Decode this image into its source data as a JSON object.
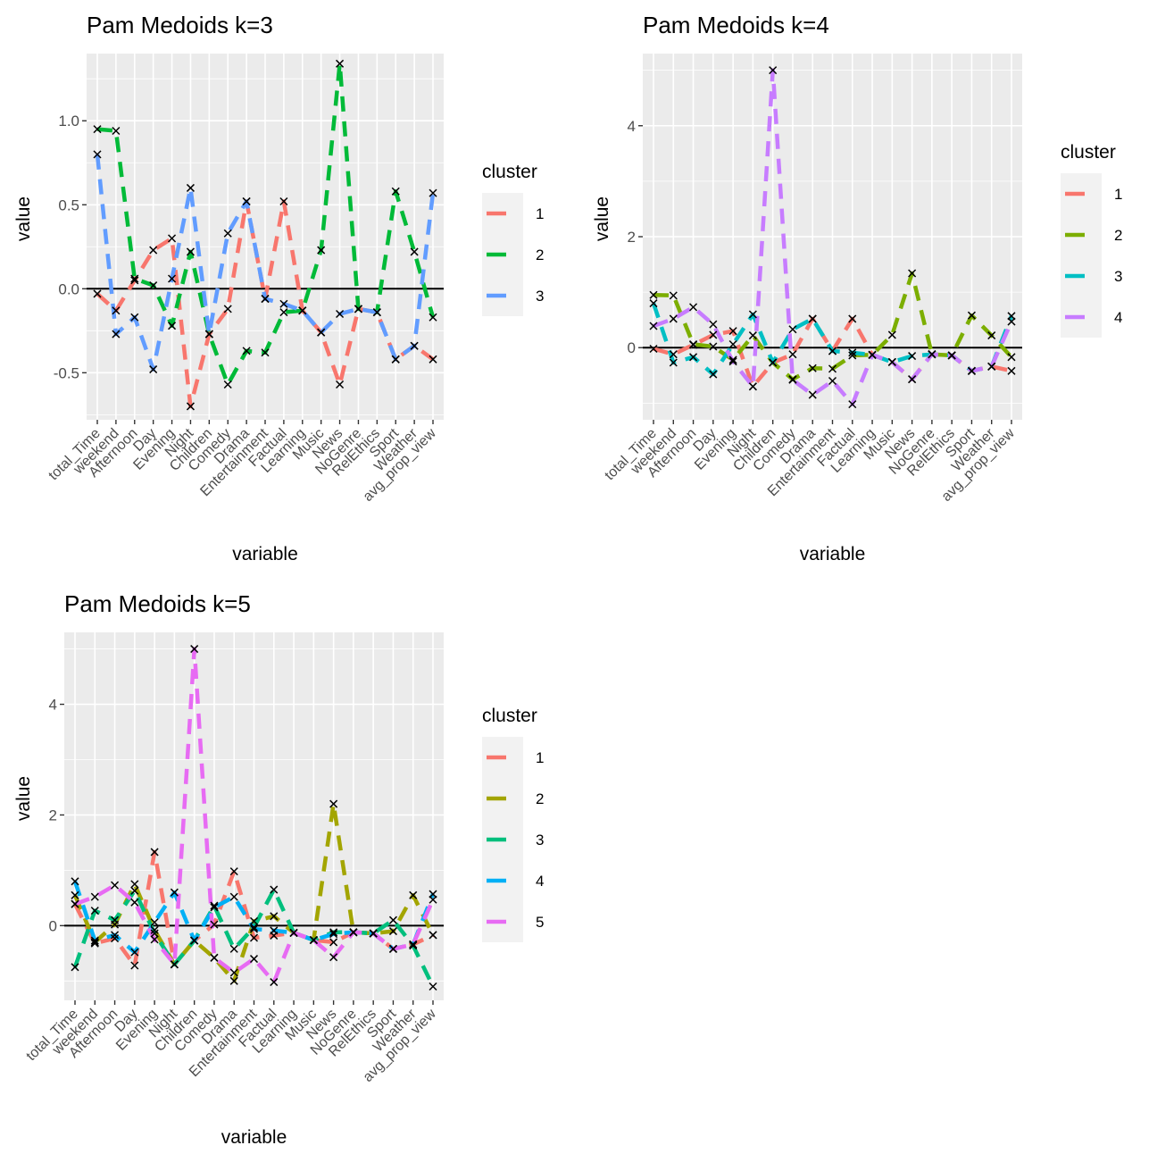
{
  "chart_data": [
    {
      "type": "line",
      "title": "Pam Medoids k=3",
      "xlabel": "variable",
      "ylabel": "value",
      "ylim": [
        -0.78,
        1.4
      ],
      "yticks": [
        -0.5,
        0.0,
        0.5,
        1.0
      ],
      "ytick_labels": [
        "-0.5",
        "0.0",
        "0.5",
        "1.0"
      ],
      "grid": true,
      "hline": 0,
      "legend_title": "cluster",
      "legend_position": "right",
      "categories": [
        "total_Time",
        "weekend",
        "Afternoon",
        "Day",
        "Evening",
        "Night",
        "Children",
        "Comedy",
        "Drama",
        "Entertainment",
        "Factual",
        "Learning",
        "Music",
        "News",
        "NoGenre",
        "RelEthics",
        "Sport",
        "Weather",
        "avg_prop_view"
      ],
      "series": [
        {
          "name": "1",
          "color": "#F8766D",
          "values": [
            -0.03,
            -0.13,
            0.05,
            0.23,
            0.3,
            -0.7,
            -0.27,
            -0.12,
            0.52,
            -0.06,
            0.52,
            -0.13,
            -0.26,
            -0.57,
            -0.12,
            -0.14,
            -0.42,
            -0.34,
            -0.42
          ]
        },
        {
          "name": "2",
          "color": "#00BA38",
          "values": [
            0.95,
            0.94,
            0.06,
            0.02,
            -0.22,
            0.22,
            -0.27,
            -0.57,
            -0.37,
            -0.38,
            -0.14,
            -0.13,
            0.23,
            1.34,
            -0.12,
            -0.14,
            0.58,
            0.22,
            -0.17
          ]
        },
        {
          "name": "3",
          "color": "#619CFF",
          "values": [
            0.8,
            -0.27,
            -0.17,
            -0.48,
            0.06,
            0.6,
            -0.27,
            0.33,
            0.52,
            -0.06,
            -0.09,
            -0.13,
            -0.26,
            -0.15,
            -0.12,
            -0.14,
            -0.42,
            -0.34,
            0.57
          ]
        }
      ]
    },
    {
      "type": "line",
      "title": "Pam Medoids k=4",
      "xlabel": "variable",
      "ylabel": "value",
      "ylim": [
        -1.3,
        5.3
      ],
      "yticks": [
        0,
        2,
        4
      ],
      "ytick_labels": [
        "0",
        "2",
        "4"
      ],
      "grid": true,
      "hline": 0,
      "legend_title": "cluster",
      "legend_position": "right",
      "categories": [
        "total_Time",
        "weekend",
        "Afternoon",
        "Day",
        "Evening",
        "Night",
        "Children",
        "Comedy",
        "Drama",
        "Entertainment",
        "Factual",
        "Learning",
        "Music",
        "News",
        "NoGenre",
        "RelEthics",
        "Sport",
        "Weather",
        "avg_prop_view"
      ],
      "series": [
        {
          "name": "1",
          "color": "#F8766D",
          "values": [
            -0.02,
            -0.12,
            0.05,
            0.23,
            0.3,
            -0.7,
            -0.27,
            -0.12,
            0.52,
            -0.06,
            0.52,
            -0.13,
            -0.26,
            -0.57,
            -0.12,
            -0.14,
            -0.42,
            -0.34,
            -0.42
          ]
        },
        {
          "name": "2",
          "color": "#7CAE00",
          "values": [
            0.95,
            0.94,
            0.06,
            0.02,
            -0.22,
            0.22,
            -0.27,
            -0.57,
            -0.37,
            -0.38,
            -0.14,
            -0.13,
            0.23,
            1.34,
            -0.12,
            -0.14,
            0.58,
            0.22,
            -0.17
          ]
        },
        {
          "name": "3",
          "color": "#00BFC4",
          "values": [
            0.8,
            -0.27,
            -0.17,
            -0.48,
            0.06,
            0.6,
            -0.27,
            0.33,
            0.52,
            -0.06,
            -0.09,
            -0.13,
            -0.26,
            -0.15,
            -0.12,
            -0.14,
            -0.42,
            -0.34,
            0.57
          ]
        },
        {
          "name": "4",
          "color": "#C77CFF",
          "values": [
            0.39,
            0.52,
            0.73,
            0.42,
            -0.25,
            -0.7,
            5.0,
            -0.58,
            -0.85,
            -0.6,
            -1.02,
            -0.13,
            -0.26,
            -0.57,
            -0.12,
            -0.14,
            -0.42,
            -0.34,
            0.47
          ]
        }
      ]
    },
    {
      "type": "line",
      "title": "Pam Medoids k=5",
      "xlabel": "variable",
      "ylabel": "value",
      "ylim": [
        -1.35,
        5.3
      ],
      "yticks": [
        0,
        2,
        4
      ],
      "ytick_labels": [
        "0",
        "2",
        "4"
      ],
      "grid": true,
      "hline": 0,
      "legend_title": "cluster",
      "legend_position": "right",
      "categories": [
        "total_Time",
        "weekend",
        "Afternoon",
        "Day",
        "Evening",
        "Night",
        "Children",
        "Comedy",
        "Drama",
        "Entertainment",
        "Factual",
        "Learning",
        "Music",
        "News",
        "NoGenre",
        "RelEthics",
        "Sport",
        "Weather",
        "avg_prop_view"
      ],
      "series": [
        {
          "name": "1",
          "color": "#F8766D",
          "values": [
            0.39,
            -0.32,
            -0.23,
            -0.72,
            1.33,
            -0.7,
            -0.27,
            0.02,
            0.98,
            -0.22,
            -0.18,
            -0.13,
            -0.26,
            -0.3,
            -0.12,
            -0.14,
            -0.42,
            -0.34,
            -0.17
          ]
        },
        {
          "name": "2",
          "color": "#A3A500",
          "values": [
            0.55,
            -0.3,
            0.02,
            0.75,
            -0.08,
            -0.7,
            -0.27,
            -0.58,
            -1.0,
            0.08,
            0.17,
            -0.13,
            -0.26,
            2.2,
            -0.12,
            -0.14,
            -0.1,
            0.55,
            -0.17
          ]
        },
        {
          "name": "3",
          "color": "#00BF7D",
          "values": [
            -0.75,
            0.27,
            0.1,
            0.63,
            -0.14,
            -0.7,
            -0.27,
            0.36,
            -0.42,
            -0.03,
            0.65,
            -0.13,
            -0.26,
            -0.12,
            -0.12,
            -0.14,
            0.1,
            -0.36,
            -1.1
          ]
        },
        {
          "name": "4",
          "color": "#00B0F6",
          "values": [
            0.8,
            -0.27,
            -0.17,
            -0.48,
            0.06,
            0.6,
            -0.27,
            0.33,
            0.52,
            -0.06,
            -0.09,
            -0.13,
            -0.26,
            -0.15,
            -0.12,
            -0.14,
            -0.42,
            -0.34,
            0.57
          ]
        },
        {
          "name": "5",
          "color": "#E76BF3",
          "values": [
            0.39,
            0.52,
            0.73,
            0.42,
            -0.25,
            -0.7,
            5.0,
            -0.58,
            -0.85,
            -0.6,
            -1.02,
            -0.13,
            -0.26,
            -0.57,
            -0.12,
            -0.14,
            -0.42,
            -0.34,
            0.47
          ]
        }
      ]
    }
  ]
}
